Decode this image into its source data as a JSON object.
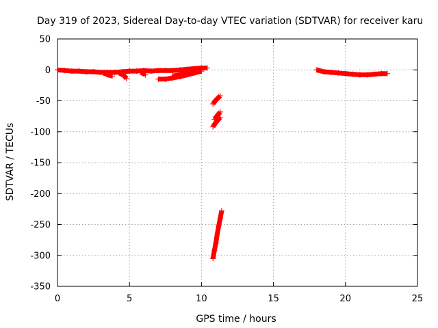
{
  "chart_data": {
    "type": "scatter",
    "title": "Day 319 of 2023, Sidereal Day-to-day VTEC variation (SDTVAR) for receiver karu",
    "xlabel": "GPS time / hours",
    "ylabel": "SDTVAR / TECUs",
    "xlim": [
      0,
      25
    ],
    "ylim": [
      -350,
      50
    ],
    "xticks": [
      "0",
      "5",
      "10",
      "15",
      "20",
      "25"
    ],
    "yticks": [
      "50",
      "0",
      "-50",
      "-100",
      "-150",
      "-200",
      "-250",
      "-300",
      "-350"
    ],
    "grid": true,
    "series_color": "#ff0000",
    "marker": "plus",
    "segments": [
      {
        "x": [
          0.0,
          0.5,
          1.0,
          1.5,
          2.0,
          2.5,
          3.0,
          3.5,
          4.0,
          4.5,
          5.0,
          5.5,
          6.0,
          6.5,
          7.0,
          7.5,
          8.0,
          8.5,
          9.0,
          9.5,
          10.0,
          10.4
        ],
        "y": [
          0,
          -1,
          -2,
          -2,
          -3,
          -3,
          -4,
          -4,
          -4,
          -3,
          -2,
          -2,
          -1,
          -2,
          -1,
          -1,
          -1,
          0,
          1,
          2,
          3,
          3
        ]
      },
      {
        "x": [
          3.2,
          3.5,
          3.8
        ],
        "y": [
          -5,
          -8,
          -10
        ]
      },
      {
        "x": [
          4.3,
          4.6,
          4.8
        ],
        "y": [
          -5,
          -9,
          -14
        ]
      },
      {
        "x": [
          5.8,
          6.1
        ],
        "y": [
          -4,
          -8
        ]
      },
      {
        "x": [
          7.0,
          7.5,
          8.0,
          8.5,
          9.0,
          9.5,
          10.0
        ],
        "y": [
          -15,
          -15,
          -13,
          -11,
          -8,
          -5,
          -2
        ]
      },
      {
        "x": [
          8.0,
          8.5,
          9.0,
          9.5,
          10.0
        ],
        "y": [
          -10,
          -8,
          -6,
          -4,
          -2
        ]
      },
      {
        "x": [
          10.8,
          11.0,
          11.3
        ],
        "y": [
          -55,
          -49,
          -42
        ]
      },
      {
        "x": [
          10.8,
          11.0,
          11.3
        ],
        "y": [
          -92,
          -85,
          -77
        ]
      },
      {
        "x": [
          10.9,
          11.1,
          11.3
        ],
        "y": [
          -80,
          -74,
          -68
        ]
      },
      {
        "x": [
          10.8,
          10.9,
          11.0,
          11.1,
          11.2,
          11.3,
          11.4
        ],
        "y": [
          -305,
          -292,
          -280,
          -265,
          -252,
          -240,
          -228
        ]
      },
      {
        "x": [
          18.0,
          18.5,
          19.0,
          19.5,
          20.0,
          20.5,
          21.0,
          21.5,
          22.0,
          22.5,
          22.9
        ],
        "y": [
          0,
          -3,
          -4,
          -5,
          -6,
          -7,
          -8,
          -8,
          -7,
          -6,
          -6
        ]
      }
    ]
  }
}
